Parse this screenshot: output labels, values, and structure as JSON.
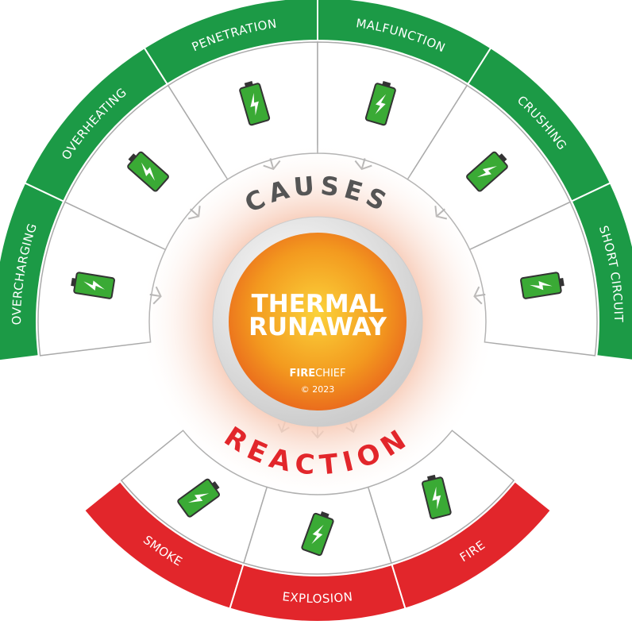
{
  "causes_title": "CAUSES",
  "reaction_title": "REACTION",
  "center": {
    "title_lines": [
      "THERMAL",
      "RUNAWAY"
    ],
    "brand": {
      "bold": "FIRE",
      "light": "CHIEF"
    },
    "copyright": "© 2023"
  },
  "causes": [
    "OVERCHARGING",
    "OVERHEATING",
    "PENETRATION",
    "MALFUNCTION",
    "CRUSHING",
    "SHORT CIRCUIT"
  ],
  "reactions": [
    "SMOKE",
    "EXPLOSION",
    "FIRE"
  ]
}
